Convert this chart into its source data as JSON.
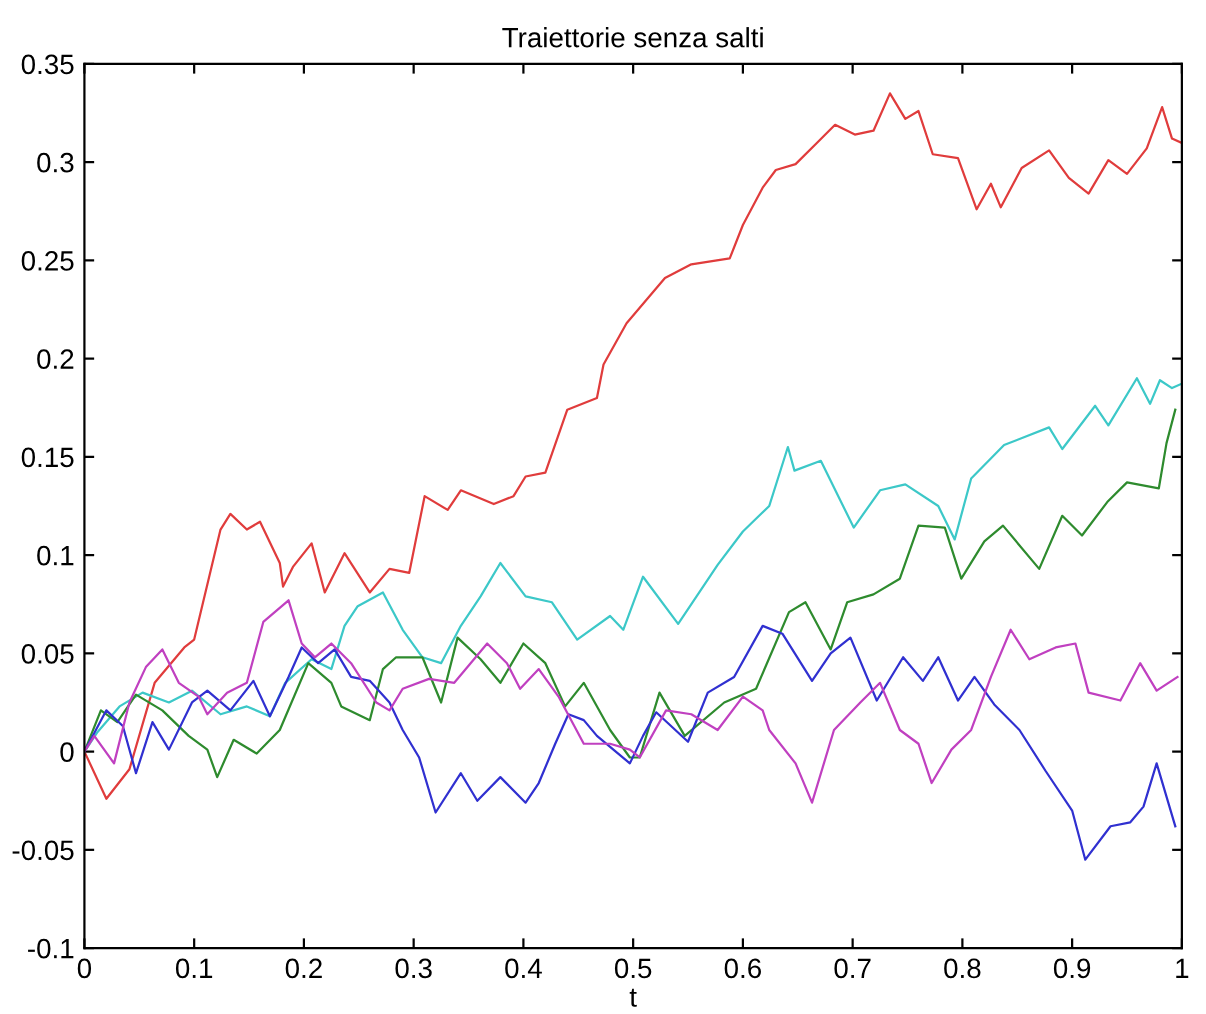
{
  "chart_data": {
    "type": "line",
    "title": "Traiettorie senza salti",
    "xlabel": "t",
    "xlim": [
      0,
      1
    ],
    "ylim": [
      -0.1,
      0.35
    ],
    "xticks": [
      0,
      0.1,
      0.2,
      0.3,
      0.4,
      0.5,
      0.6,
      0.7,
      0.8,
      0.9,
      1
    ],
    "yticks": [
      -0.1,
      -0.05,
      0,
      0.05,
      0.1,
      0.15,
      0.2,
      0.25,
      0.3,
      0.35
    ],
    "grid": false,
    "legend": false,
    "marker": "none",
    "line_style": "solid",
    "series": [
      {
        "color": "#e03c3c",
        "x": [
          0,
          0.02,
          0.041,
          0.064,
          0.091,
          0.1,
          0.124,
          0.133,
          0.148,
          0.16,
          0.178,
          0.181,
          0.19,
          0.207,
          0.219,
          0.237,
          0.26,
          0.278,
          0.296,
          0.31,
          0.331,
          0.343,
          0.373,
          0.391,
          0.402,
          0.42,
          0.44,
          0.467,
          0.473,
          0.494,
          0.529,
          0.553,
          0.588,
          0.6,
          0.618,
          0.63,
          0.648,
          0.666,
          0.684,
          0.702,
          0.719,
          0.734,
          0.748,
          0.76,
          0.773,
          0.796,
          0.813,
          0.826,
          0.835,
          0.854,
          0.879,
          0.897,
          0.915,
          0.933,
          0.95,
          0.968,
          0.982,
          0.991,
          0.999
        ],
        "values": [
          0,
          -0.024,
          -0.009,
          0.035,
          0.053,
          0.057,
          0.113,
          0.121,
          0.113,
          0.117,
          0.096,
          0.084,
          0.094,
          0.106,
          0.081,
          0.101,
          0.081,
          0.093,
          0.091,
          0.13,
          0.123,
          0.133,
          0.126,
          0.13,
          0.14,
          0.142,
          0.174,
          0.18,
          0.197,
          0.218,
          0.241,
          0.248,
          0.251,
          0.268,
          0.287,
          0.296,
          0.299,
          0.309,
          0.319,
          0.314,
          0.316,
          0.335,
          0.322,
          0.326,
          0.304,
          0.302,
          0.276,
          0.289,
          0.277,
          0.297,
          0.306,
          0.292,
          0.284,
          0.301,
          0.294,
          0.307,
          0.328,
          0.312,
          0.31
        ]
      },
      {
        "color": "#3cc8c8",
        "x": [
          0,
          0.012,
          0.032,
          0.053,
          0.077,
          0.098,
          0.124,
          0.148,
          0.169,
          0.183,
          0.207,
          0.225,
          0.237,
          0.249,
          0.272,
          0.29,
          0.308,
          0.325,
          0.343,
          0.361,
          0.379,
          0.402,
          0.426,
          0.449,
          0.479,
          0.491,
          0.509,
          0.541,
          0.577,
          0.6,
          0.624,
          0.641,
          0.647,
          0.671,
          0.701,
          0.725,
          0.748,
          0.778,
          0.793,
          0.808,
          0.838,
          0.879,
          0.891,
          0.921,
          0.933,
          0.959,
          0.971,
          0.98,
          0.991,
          0.999
        ],
        "values": [
          0,
          0.01,
          0.023,
          0.03,
          0.025,
          0.031,
          0.019,
          0.023,
          0.018,
          0.035,
          0.047,
          0.042,
          0.064,
          0.074,
          0.081,
          0.062,
          0.048,
          0.045,
          0.064,
          0.079,
          0.096,
          0.079,
          0.076,
          0.057,
          0.069,
          0.062,
          0.089,
          0.065,
          0.095,
          0.112,
          0.125,
          0.155,
          0.143,
          0.148,
          0.114,
          0.133,
          0.136,
          0.125,
          0.108,
          0.139,
          0.156,
          0.165,
          0.154,
          0.176,
          0.166,
          0.19,
          0.177,
          0.189,
          0.185,
          0.187
        ]
      },
      {
        "color": "#2e8b2e",
        "x": [
          0,
          0.015,
          0.03,
          0.047,
          0.071,
          0.095,
          0.112,
          0.121,
          0.136,
          0.157,
          0.178,
          0.204,
          0.225,
          0.234,
          0.26,
          0.272,
          0.284,
          0.308,
          0.325,
          0.34,
          0.361,
          0.379,
          0.4,
          0.42,
          0.438,
          0.455,
          0.479,
          0.497,
          0.506,
          0.524,
          0.547,
          0.583,
          0.612,
          0.642,
          0.657,
          0.68,
          0.695,
          0.719,
          0.743,
          0.76,
          0.784,
          0.799,
          0.82,
          0.837,
          0.87,
          0.891,
          0.909,
          0.932,
          0.95,
          0.979,
          0.986,
          0.994
        ],
        "values": [
          0,
          0.021,
          0.015,
          0.029,
          0.021,
          0.008,
          0.001,
          -0.013,
          0.006,
          -0.001,
          0.011,
          0.045,
          0.035,
          0.023,
          0.016,
          0.042,
          0.048,
          0.048,
          0.025,
          0.058,
          0.047,
          0.035,
          0.055,
          0.045,
          0.023,
          0.035,
          0.011,
          -0.003,
          -0.003,
          0.03,
          0.008,
          0.025,
          0.032,
          0.071,
          0.076,
          0.052,
          0.076,
          0.08,
          0.088,
          0.115,
          0.114,
          0.088,
          0.107,
          0.115,
          0.093,
          0.12,
          0.11,
          0.127,
          0.137,
          0.134,
          0.157,
          0.174
        ]
      },
      {
        "color": "#3030d0",
        "x": [
          0,
          0.02,
          0.035,
          0.047,
          0.062,
          0.077,
          0.098,
          0.112,
          0.133,
          0.154,
          0.169,
          0.186,
          0.198,
          0.213,
          0.228,
          0.243,
          0.26,
          0.278,
          0.29,
          0.305,
          0.32,
          0.343,
          0.358,
          0.379,
          0.402,
          0.414,
          0.429,
          0.441,
          0.455,
          0.467,
          0.497,
          0.509,
          0.521,
          0.55,
          0.568,
          0.592,
          0.618,
          0.636,
          0.663,
          0.68,
          0.698,
          0.722,
          0.746,
          0.764,
          0.778,
          0.796,
          0.811,
          0.829,
          0.852,
          0.876,
          0.9,
          0.912,
          0.935,
          0.953,
          0.965,
          0.977,
          0.994
        ],
        "values": [
          0,
          0.021,
          0.013,
          -0.011,
          0.015,
          0.001,
          0.025,
          0.031,
          0.021,
          0.036,
          0.018,
          0.038,
          0.053,
          0.045,
          0.052,
          0.038,
          0.036,
          0.025,
          0.011,
          -0.003,
          -0.031,
          -0.011,
          -0.025,
          -0.013,
          -0.026,
          -0.016,
          0.004,
          0.019,
          0.016,
          0.008,
          -0.006,
          0.008,
          0.02,
          0.005,
          0.03,
          0.038,
          0.064,
          0.06,
          0.036,
          0.05,
          0.058,
          0.026,
          0.048,
          0.036,
          0.048,
          0.026,
          0.038,
          0.024,
          0.011,
          -0.01,
          -0.03,
          -0.055,
          -0.038,
          -0.036,
          -0.028,
          -0.006,
          -0.038
        ]
      },
      {
        "color": "#c040c0",
        "x": [
          0,
          0.009,
          0.027,
          0.041,
          0.056,
          0.071,
          0.086,
          0.104,
          0.112,
          0.13,
          0.148,
          0.163,
          0.186,
          0.198,
          0.21,
          0.225,
          0.243,
          0.266,
          0.278,
          0.29,
          0.314,
          0.337,
          0.367,
          0.385,
          0.397,
          0.414,
          0.432,
          0.455,
          0.479,
          0.497,
          0.506,
          0.53,
          0.553,
          0.577,
          0.6,
          0.618,
          0.624,
          0.648,
          0.663,
          0.683,
          0.707,
          0.725,
          0.743,
          0.76,
          0.772,
          0.79,
          0.808,
          0.826,
          0.844,
          0.861,
          0.885,
          0.903,
          0.915,
          0.944,
          0.962,
          0.977,
          0.996
        ],
        "values": [
          0,
          0.008,
          -0.006,
          0.025,
          0.043,
          0.052,
          0.035,
          0.028,
          0.019,
          0.03,
          0.035,
          0.066,
          0.077,
          0.055,
          0.048,
          0.055,
          0.045,
          0.025,
          0.021,
          0.032,
          0.037,
          0.035,
          0.055,
          0.045,
          0.032,
          0.042,
          0.028,
          0.004,
          0.004,
          0.001,
          -0.003,
          0.021,
          0.019,
          0.011,
          0.028,
          0.021,
          0.011,
          -0.006,
          -0.026,
          0.011,
          0.025,
          0.035,
          0.011,
          0.004,
          -0.016,
          0.001,
          0.011,
          0.038,
          0.062,
          0.047,
          0.053,
          0.055,
          0.03,
          0.026,
          0.045,
          0.031,
          0.038
        ]
      }
    ]
  }
}
